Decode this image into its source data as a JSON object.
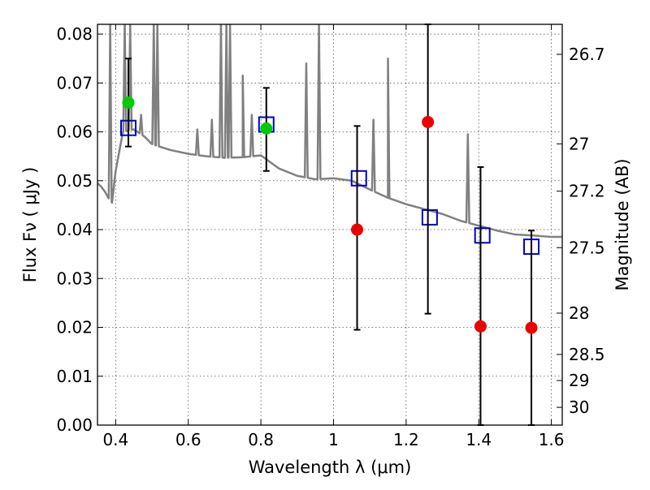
{
  "chart_data": {
    "type": "scatter",
    "title": "",
    "xlabel": "Wavelength  λ (μm)",
    "ylabel_left": "Flux  Fν ( μJy )",
    "ylabel_right": "Magnitude (AB)",
    "xlim": [
      0.35,
      1.63
    ],
    "ylim": [
      0.0,
      0.082
    ],
    "grid": true,
    "x_ticks": [
      "0.4",
      "0.6",
      "0.8",
      "1",
      "1.2",
      "1.4",
      "1.6"
    ],
    "x_tick_values": [
      0.4,
      0.6,
      0.8,
      1.0,
      1.2,
      1.4,
      1.6
    ],
    "y_ticks": [
      "0.00",
      "0.01",
      "0.02",
      "0.03",
      "0.04",
      "0.05",
      "0.06",
      "0.07",
      "0.08"
    ],
    "y_tick_values": [
      0.0,
      0.01,
      0.02,
      0.03,
      0.04,
      0.05,
      0.06,
      0.07,
      0.08
    ],
    "mag_ticks": [
      "26.7",
      "27",
      "27.2",
      "27.5",
      "28",
      "28.5",
      "29",
      "30"
    ],
    "mag_tick_values": [
      26.7,
      27.0,
      27.2,
      27.5,
      28.0,
      28.5,
      29.0,
      30.0
    ],
    "colors": {
      "sed": "#808080",
      "model": "#0000cc",
      "detection": "#00cc00",
      "upper": "#ee0000",
      "errorbar": "#000000",
      "grid": "#555555"
    },
    "series": [
      {
        "marker": "open-square",
        "color": "#0000cc",
        "x": [
          0.435,
          0.815,
          1.07,
          1.265,
          1.41,
          1.545
        ],
        "y": [
          0.0608,
          0.0615,
          0.0505,
          0.0425,
          0.0388,
          0.0365
        ]
      },
      {
        "marker": "filled-circle",
        "color": "#00cc00",
        "x": [
          0.435,
          0.815
        ],
        "y": [
          0.066,
          0.0607
        ],
        "yerr_low": [
          0.057,
          0.052
        ],
        "yerr_high": [
          0.075,
          0.069
        ]
      },
      {
        "marker": "filled-circle",
        "color": "#ee0000",
        "x": [
          1.065,
          1.26,
          1.405,
          1.545
        ],
        "y": [
          0.04,
          0.062,
          0.0202,
          0.0199
        ],
        "yerr_low": [
          0.0195,
          0.0228,
          0.0,
          0.0
        ],
        "yerr_high": [
          0.0612,
          0.082,
          0.0528,
          0.0398
        ]
      }
    ],
    "sed_continuum": {
      "x": [
        0.35,
        0.36,
        0.37,
        0.38,
        0.39,
        0.4,
        0.42,
        0.45,
        0.48,
        0.5,
        0.52,
        0.55,
        0.6,
        0.65,
        0.7,
        0.75,
        0.8,
        0.85,
        0.9,
        0.95,
        1.0,
        1.05,
        1.1,
        1.15,
        1.2,
        1.25,
        1.3,
        1.35,
        1.4,
        1.45,
        1.5,
        1.55,
        1.6,
        1.63
      ],
      "y": [
        0.0495,
        0.0488,
        0.0478,
        0.0465,
        0.0455,
        0.052,
        0.06,
        0.0605,
        0.059,
        0.0575,
        0.057,
        0.0563,
        0.0555,
        0.055,
        0.0547,
        0.0548,
        0.0552,
        0.0525,
        0.051,
        0.0503,
        0.0505,
        0.05,
        0.0482,
        0.0465,
        0.0452,
        0.0442,
        0.0432,
        0.0418,
        0.0408,
        0.0398,
        0.039,
        0.0388,
        0.0385,
        0.0385
      ]
    },
    "sed_lines": {
      "x": [
        0.385,
        0.425,
        0.44,
        0.47,
        0.505,
        0.515,
        0.625,
        0.665,
        0.69,
        0.705,
        0.715,
        0.75,
        0.775,
        0.925,
        0.96,
        1.11,
        1.15,
        1.37
      ],
      "y": [
        0.082,
        0.082,
        0.082,
        0.0635,
        0.082,
        0.082,
        0.0605,
        0.0625,
        0.082,
        0.082,
        0.082,
        0.0715,
        0.0635,
        0.074,
        0.082,
        0.0625,
        0.075,
        0.0595
      ]
    }
  }
}
